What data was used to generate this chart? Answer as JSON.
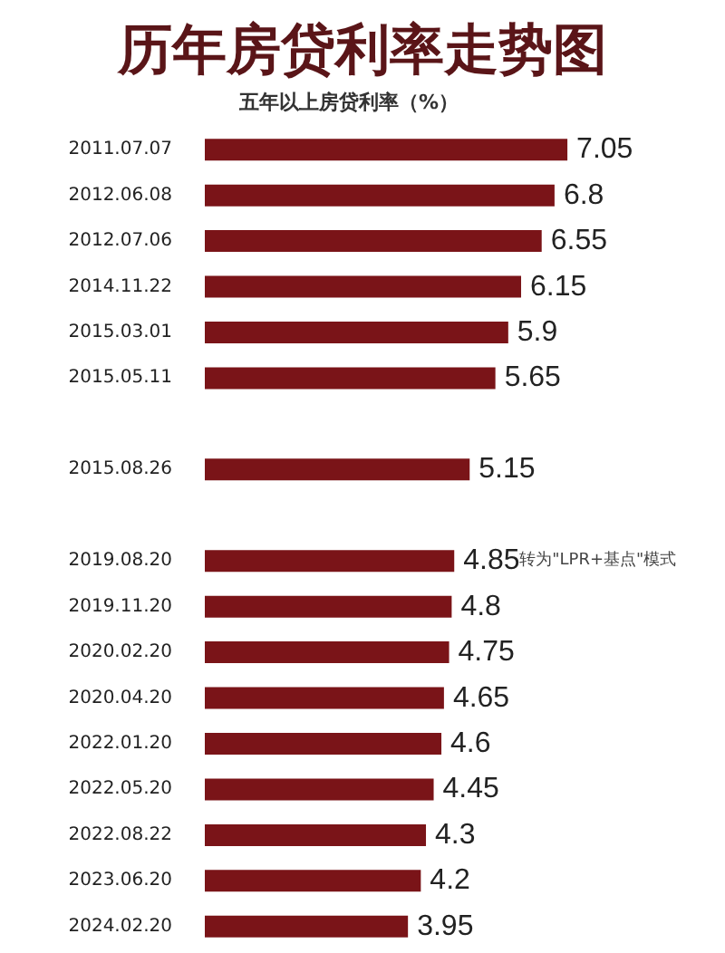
{
  "chart_data": {
    "type": "bar",
    "orientation": "horizontal",
    "title": "历年房贷利率走势图",
    "subtitle": "五年以上房贷利率（%）",
    "categories": [
      "2011.07.07",
      "2012.06.08",
      "2012.07.06",
      "2014.11.22",
      "2015.03.01",
      "2015.05.11",
      null,
      "2015.08.26",
      null,
      "2019.08.20",
      "2019.11.20",
      "2020.02.20",
      "2020.04.20",
      "2022.01.20",
      "2022.05.20",
      "2022.08.22",
      "2023.06.20",
      "2024.02.20"
    ],
    "values": [
      7.05,
      6.8,
      6.55,
      6.15,
      5.9,
      5.65,
      null,
      5.15,
      null,
      4.85,
      4.8,
      4.75,
      4.65,
      4.6,
      4.45,
      4.3,
      4.2,
      3.95
    ],
    "color": "#7a1418",
    "tick_labels": "y",
    "data_labels": true,
    "annotations": [
      "转为\"LPR+基点\"模式"
    ]
  }
}
